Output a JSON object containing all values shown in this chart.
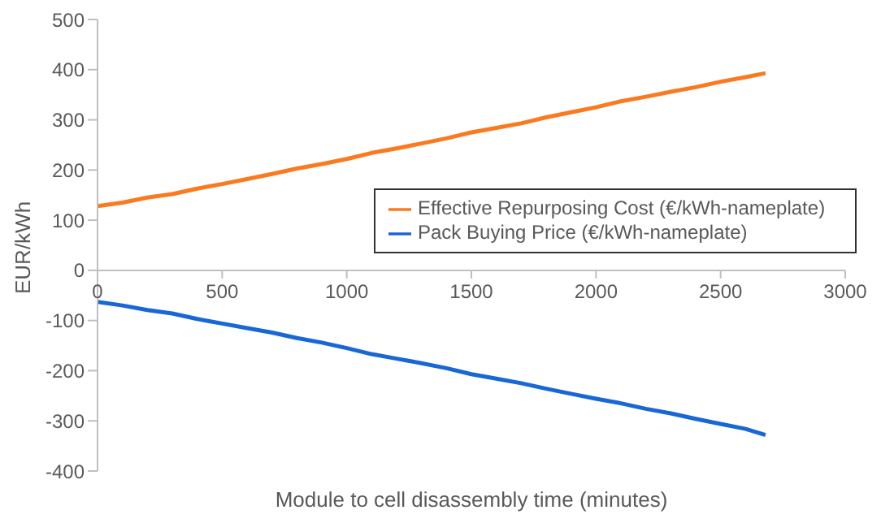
{
  "chart_data": {
    "type": "line",
    "xlabel": "Module to cell disassembly time (minutes)",
    "ylabel": "EUR/kWh",
    "x": [
      0,
      100,
      200,
      300,
      400,
      500,
      600,
      700,
      800,
      900,
      1000,
      1100,
      1200,
      1300,
      1400,
      1500,
      1600,
      1700,
      1800,
      1900,
      2000,
      2100,
      2200,
      2300,
      2400,
      2500,
      2600,
      2680
    ],
    "series": [
      {
        "name": "Effective Repurposing Cost (€/kWh-nameplate)",
        "color": "#f97a1f",
        "values": [
          128,
          135,
          145,
          152,
          163,
          172,
          182,
          192,
          203,
          212,
          222,
          234,
          243,
          253,
          263,
          275,
          284,
          293,
          305,
          315,
          325,
          337,
          346,
          356,
          365,
          376,
          385,
          393
        ]
      },
      {
        "name": "Pack Buying Price (€/kWh-nameplate)",
        "color": "#1767d6",
        "values": [
          -63,
          -70,
          -79,
          -86,
          -97,
          -106,
          -115,
          -124,
          -135,
          -144,
          -155,
          -167,
          -176,
          -185,
          -195,
          -207,
          -216,
          -225,
          -236,
          -246,
          -256,
          -265,
          -276,
          -285,
          -296,
          -306,
          -316,
          -328
        ]
      }
    ],
    "xlim": [
      0,
      3000
    ],
    "xticks": [
      0,
      500,
      1000,
      1500,
      2000,
      2500,
      3000
    ],
    "ylim": [
      -400,
      500
    ],
    "yticks": [
      -400,
      -300,
      -200,
      -100,
      0,
      100,
      200,
      300,
      400,
      500
    ],
    "grid": false,
    "legend": "right",
    "marker": "none",
    "line_style": "solid"
  }
}
